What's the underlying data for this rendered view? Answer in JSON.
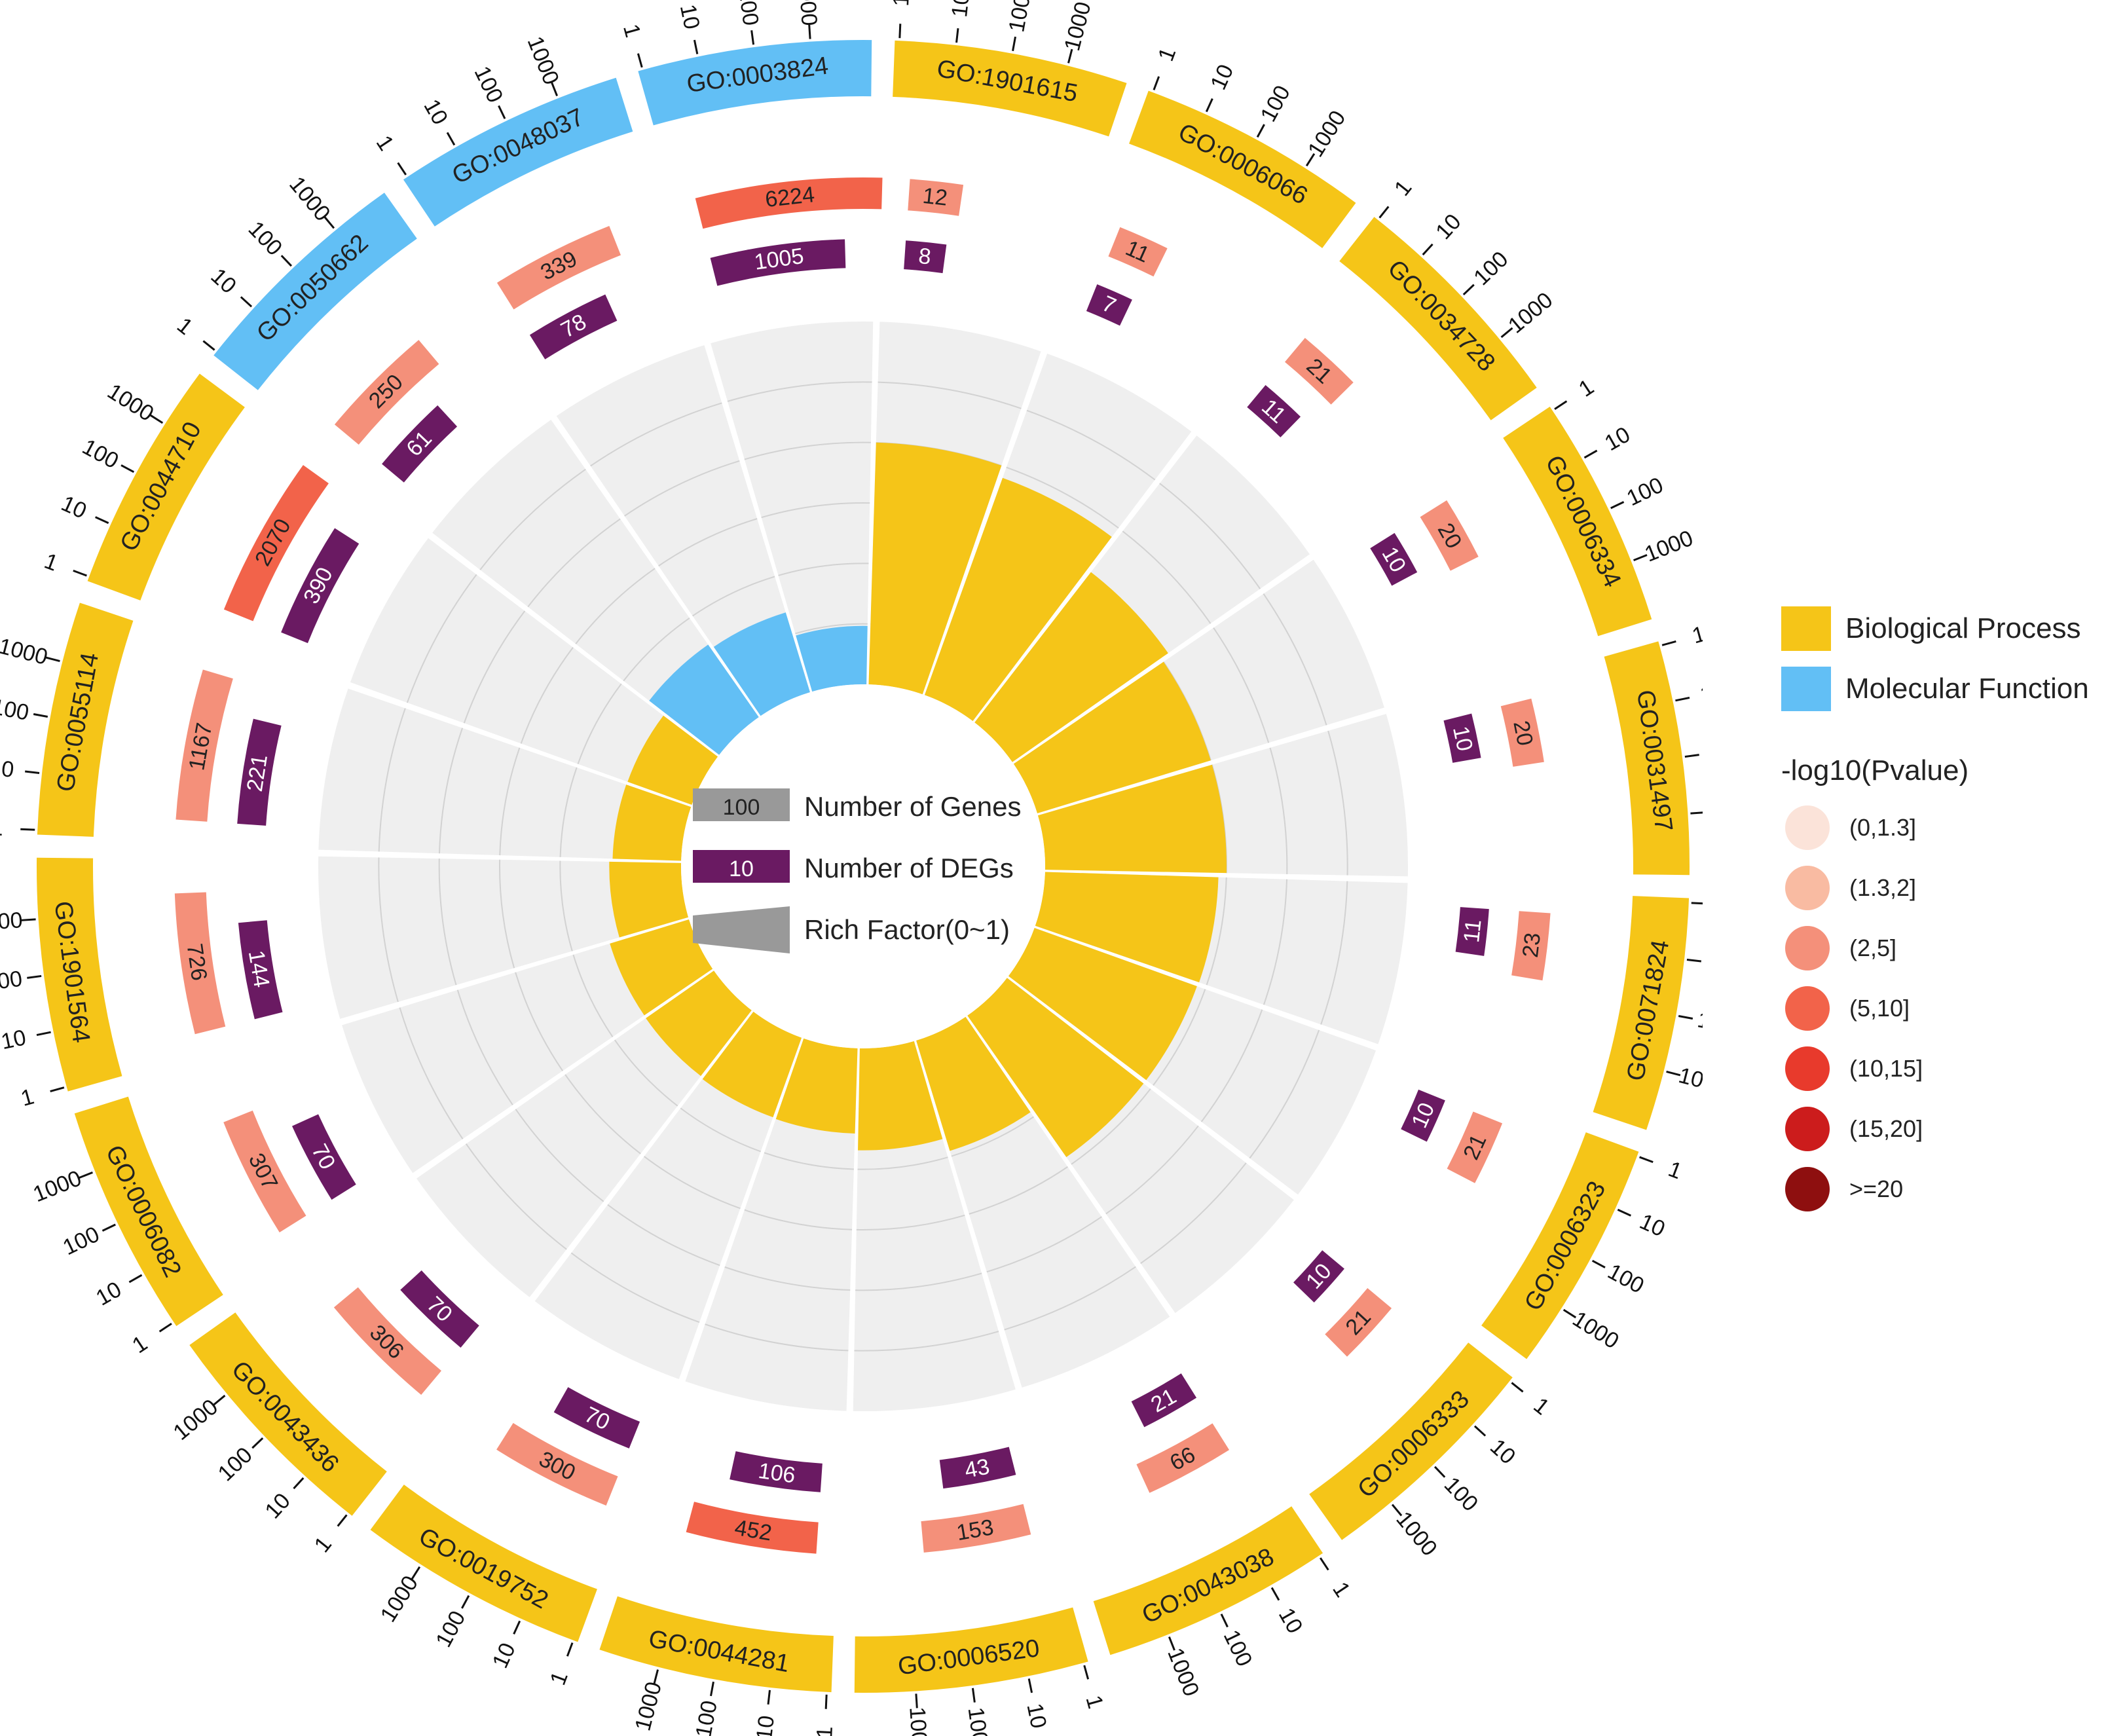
{
  "chart_data": {
    "type": "circular-go-enrichment",
    "title": "",
    "axis_ticks": [
      "1",
      "10",
      "100",
      "1000"
    ],
    "axis_range": [
      1,
      1000
    ],
    "rich_factor_range": [
      0,
      1
    ],
    "terms": [
      {
        "id": "GO:1901615",
        "category": "Biological Process",
        "genes": "12",
        "degs": "8",
        "rich_factor": 0.667,
        "pvalue_class": "(2,5]"
      },
      {
        "id": "GO:0006066",
        "category": "Biological Process",
        "genes": "11",
        "degs": "7",
        "rich_factor": 0.636,
        "pvalue_class": "(2,5]"
      },
      {
        "id": "GO:0034728",
        "category": "Biological Process",
        "genes": "21",
        "degs": "11",
        "rich_factor": 0.524,
        "pvalue_class": "(2,5]"
      },
      {
        "id": "GO:0006334",
        "category": "Biological Process",
        "genes": "20",
        "degs": "10",
        "rich_factor": 0.5,
        "pvalue_class": "(2,5]"
      },
      {
        "id": "GO:0031497",
        "category": "Biological Process",
        "genes": "20",
        "degs": "10",
        "rich_factor": 0.5,
        "pvalue_class": "(2,5]"
      },
      {
        "id": "GO:0071824",
        "category": "Biological Process",
        "genes": "23",
        "degs": "11",
        "rich_factor": 0.478,
        "pvalue_class": "(2,5]"
      },
      {
        "id": "GO:0006323",
        "category": "Biological Process",
        "genes": "21",
        "degs": "10",
        "rich_factor": 0.476,
        "pvalue_class": "(2,5]"
      },
      {
        "id": "GO:0006333",
        "category": "Biological Process",
        "genes": "21",
        "degs": "10",
        "rich_factor": 0.476,
        "pvalue_class": "(2,5]"
      },
      {
        "id": "GO:0043038",
        "category": "Biological Process",
        "genes": "66",
        "degs": "21",
        "rich_factor": 0.318,
        "pvalue_class": "(2,5]"
      },
      {
        "id": "GO:0006520",
        "category": "Biological Process",
        "genes": "153",
        "degs": "43",
        "rich_factor": 0.281,
        "pvalue_class": "(2,5]"
      },
      {
        "id": "GO:0044281",
        "category": "Biological Process",
        "genes": "452",
        "degs": "106",
        "rich_factor": 0.235,
        "pvalue_class": "(5,10]"
      },
      {
        "id": "GO:0019752",
        "category": "Biological Process",
        "genes": "300",
        "degs": "70",
        "rich_factor": 0.233,
        "pvalue_class": "(2,5]"
      },
      {
        "id": "GO:0043436",
        "category": "Biological Process",
        "genes": "306",
        "degs": "70",
        "rich_factor": 0.229,
        "pvalue_class": "(2,5]"
      },
      {
        "id": "GO:0006082",
        "category": "Biological Process",
        "genes": "307",
        "degs": "70",
        "rich_factor": 0.228,
        "pvalue_class": "(2,5]"
      },
      {
        "id": "GO:1901564",
        "category": "Biological Process",
        "genes": "726",
        "degs": "144",
        "rich_factor": 0.198,
        "pvalue_class": "(2,5]"
      },
      {
        "id": "GO:0055114",
        "category": "Biological Process",
        "genes": "1167",
        "degs": "221",
        "rich_factor": 0.189,
        "pvalue_class": "(2,5]"
      },
      {
        "id": "GO:0044710",
        "category": "Biological Process",
        "genes": "2070",
        "degs": "390",
        "rich_factor": 0.188,
        "pvalue_class": "(5,10]"
      },
      {
        "id": "GO:0050662",
        "category": "Molecular Function",
        "genes": "250",
        "degs": "61",
        "rich_factor": 0.244,
        "pvalue_class": "(2,5]"
      },
      {
        "id": "GO:0048037",
        "category": "Molecular Function",
        "genes": "339",
        "degs": "78",
        "rich_factor": 0.23,
        "pvalue_class": "(2,5]"
      },
      {
        "id": "GO:0003824",
        "category": "Molecular Function",
        "genes": "6224",
        "degs": "1005",
        "rich_factor": 0.161,
        "pvalue_class": "(5,10]"
      }
    ],
    "center_legend": {
      "genes": {
        "sample": "100",
        "label": "Number of Genes"
      },
      "degs": {
        "sample": "10",
        "label": "Number of DEGs"
      },
      "rich": {
        "label": "Rich Factor(0~1)"
      }
    }
  },
  "legend": {
    "categories": [
      {
        "label": "Biological Process",
        "color": "#f5c518"
      },
      {
        "label": "Molecular Function",
        "color": "#62bff5"
      }
    ],
    "pvalue_title": "-log10(Pvalue)",
    "pvalue_classes": [
      {
        "label": "(0,1.3]",
        "color": "#fbe3d9"
      },
      {
        "label": "(1.3,2]",
        "color": "#f9bba2"
      },
      {
        "label": "(2,5]",
        "color": "#f4907a"
      },
      {
        "label": "(5,10]",
        "color": "#f2634a"
      },
      {
        "label": "(10,15]",
        "color": "#e83a2c"
      },
      {
        "label": "(15,20]",
        "color": "#cc1c1c"
      },
      {
        "label": ">=20",
        "color": "#8e0f0f"
      }
    ]
  },
  "colors": {
    "bp": "#f5c518",
    "mf": "#62bff5",
    "deg": "#6a1a62",
    "track_bg": "#efefef",
    "grid": "#d2d2d2",
    "tick": "#111111"
  }
}
